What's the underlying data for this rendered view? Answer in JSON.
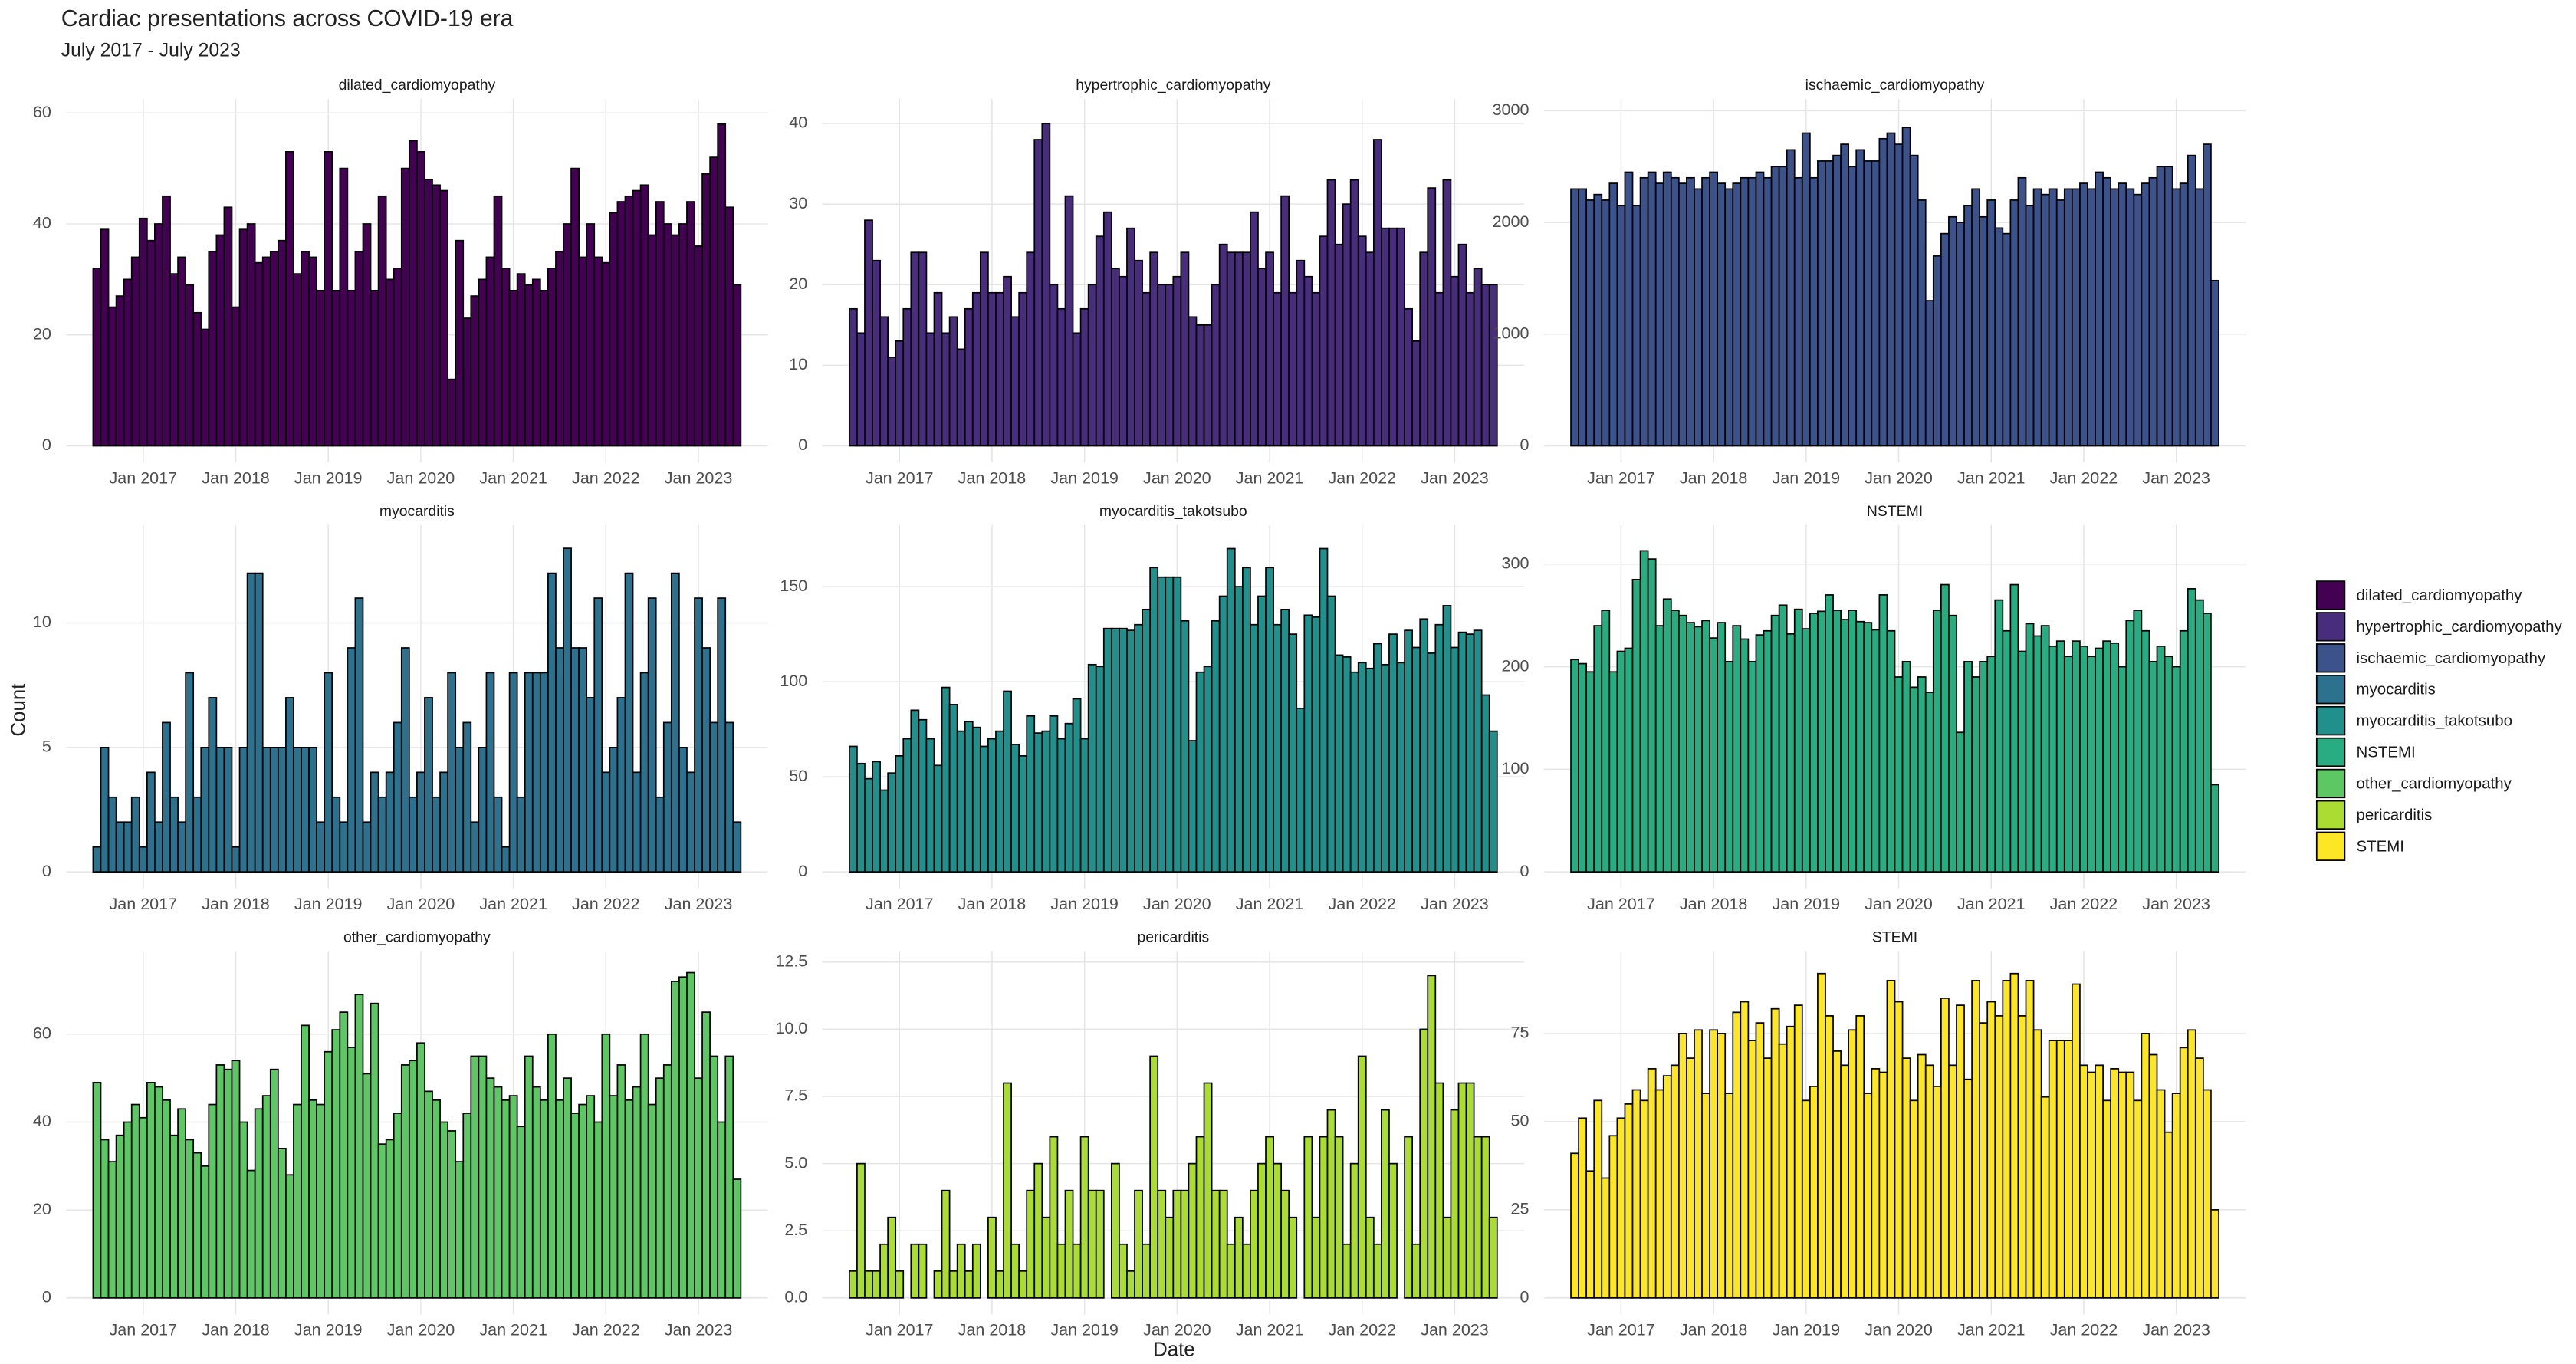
{
  "chart_data": {
    "type": "bar",
    "title": "Cardiac presentations across COVID-19 era",
    "subtitle": "July 2017 - July 2023",
    "x_label": "Date",
    "y_label": "Count",
    "xlim": [
      "2016-03",
      "2023-10"
    ],
    "xticks": [
      {
        "value": "2017-01",
        "label": "Jan 2017"
      },
      {
        "value": "2018-01",
        "label": "Jan 2018"
      },
      {
        "value": "2019-01",
        "label": "Jan 2019"
      },
      {
        "value": "2020-01",
        "label": "Jan 2020"
      },
      {
        "value": "2021-01",
        "label": "Jan 2021"
      },
      {
        "value": "2022-01",
        "label": "Jan 2022"
      },
      {
        "value": "2023-01",
        "label": "Jan 2023"
      }
    ],
    "grid": true,
    "legend": "right",
    "x": [
      "2016-07",
      "2016-08",
      "2016-09",
      "2016-10",
      "2016-11",
      "2016-12",
      "2017-01",
      "2017-02",
      "2017-03",
      "2017-04",
      "2017-05",
      "2017-06",
      "2017-07",
      "2017-08",
      "2017-09",
      "2017-10",
      "2017-11",
      "2017-12",
      "2018-01",
      "2018-02",
      "2018-03",
      "2018-04",
      "2018-05",
      "2018-06",
      "2018-07",
      "2018-08",
      "2018-09",
      "2018-10",
      "2018-11",
      "2018-12",
      "2019-01",
      "2019-02",
      "2019-03",
      "2019-04",
      "2019-05",
      "2019-06",
      "2019-07",
      "2019-08",
      "2019-09",
      "2019-10",
      "2019-11",
      "2019-12",
      "2020-01",
      "2020-02",
      "2020-03",
      "2020-04",
      "2020-05",
      "2020-06",
      "2020-07",
      "2020-08",
      "2020-09",
      "2020-10",
      "2020-11",
      "2020-12",
      "2021-01",
      "2021-02",
      "2021-03",
      "2021-04",
      "2021-05",
      "2021-06",
      "2021-07",
      "2021-08",
      "2021-09",
      "2021-10",
      "2021-11",
      "2021-12",
      "2022-01",
      "2022-02",
      "2022-03",
      "2022-04",
      "2022-05",
      "2022-06",
      "2022-07",
      "2022-08",
      "2022-09",
      "2022-10",
      "2022-11",
      "2022-12",
      "2023-01",
      "2023-02",
      "2023-03",
      "2023-04",
      "2023-05",
      "2023-06"
    ],
    "facets": [
      {
        "title": "dilated_cardiomyopathy",
        "color": "#440154",
        "ylim": [
          0,
          61
        ],
        "yticks": [
          0,
          20,
          40,
          60
        ],
        "values": [
          32,
          39,
          25,
          27,
          30,
          34,
          41,
          37,
          40,
          45,
          31,
          34,
          29,
          24,
          21,
          35,
          38,
          43,
          25,
          39,
          40,
          33,
          34,
          35,
          37,
          53,
          31,
          35,
          34,
          28,
          53,
          28,
          50,
          28,
          35,
          40,
          28,
          45,
          30,
          32,
          50,
          55,
          53,
          48,
          47,
          46,
          12,
          37,
          23,
          27,
          30,
          34,
          45,
          32,
          28,
          31,
          29,
          30,
          28,
          32,
          35,
          40,
          50,
          34,
          40,
          34,
          33,
          42,
          44,
          45,
          46,
          47,
          38,
          44,
          40,
          38,
          40,
          44,
          36,
          49,
          52,
          58,
          43,
          29
        ]
      },
      {
        "title": "hypertrophic_cardiomyopathy",
        "color": "#472D7B",
        "ylim": [
          0,
          42
        ],
        "yticks": [
          0,
          10,
          20,
          30,
          40
        ],
        "values": [
          17,
          14,
          28,
          23,
          16,
          11,
          13,
          17,
          24,
          24,
          14,
          19,
          14,
          16,
          12,
          17,
          19,
          24,
          19,
          19,
          21,
          16,
          19,
          24,
          38,
          40,
          20,
          17,
          31,
          14,
          17,
          20,
          26,
          29,
          22,
          21,
          27,
          23,
          19,
          24,
          20,
          20,
          21,
          24,
          16,
          15,
          15,
          20,
          25,
          24,
          24,
          24,
          29,
          22,
          24,
          19,
          31,
          19,
          23,
          21,
          19,
          26,
          33,
          25,
          30,
          33,
          26,
          24,
          38,
          27,
          27,
          27,
          17,
          13,
          24,
          32,
          19,
          33,
          21,
          25,
          19,
          22,
          20,
          20
        ]
      },
      {
        "title": "ischaemic_cardiomyopathy",
        "color": "#3B528B",
        "ylim": [
          0,
          3030
        ],
        "yticks": [
          0,
          1000,
          2000,
          3000
        ],
        "values": [
          2300,
          2300,
          2200,
          2250,
          2200,
          2350,
          2150,
          2450,
          2150,
          2400,
          2450,
          2350,
          2450,
          2400,
          2350,
          2400,
          2300,
          2400,
          2450,
          2350,
          2300,
          2350,
          2400,
          2400,
          2450,
          2400,
          2500,
          2500,
          2650,
          2400,
          2800,
          2400,
          2550,
          2550,
          2600,
          2700,
          2500,
          2650,
          2550,
          2550,
          2750,
          2800,
          2700,
          2850,
          2600,
          2200,
          1300,
          1700,
          1900,
          2050,
          2000,
          2150,
          2300,
          2050,
          2200,
          1950,
          1900,
          2200,
          2400,
          2150,
          2300,
          2250,
          2300,
          2200,
          2300,
          2300,
          2350,
          2300,
          2450,
          2400,
          2300,
          2350,
          2300,
          2250,
          2350,
          2400,
          2500,
          2500,
          2300,
          2350,
          2600,
          2300,
          2700,
          1480
        ]
      },
      {
        "title": "myocarditis",
        "color": "#2C728E",
        "ylim": [
          0,
          13.6
        ],
        "yticks": [
          0,
          5,
          10
        ],
        "values": [
          1,
          5,
          3,
          2,
          2,
          3,
          1,
          4,
          2,
          6,
          3,
          2,
          8,
          3,
          5,
          7,
          5,
          5,
          1,
          5,
          12,
          12,
          5,
          5,
          5,
          7,
          5,
          5,
          5,
          2,
          8,
          3,
          2,
          9,
          11,
          2,
          4,
          3,
          4,
          6,
          9,
          3,
          4,
          7,
          3,
          4,
          8,
          5,
          6,
          2,
          5,
          8,
          3,
          1,
          8,
          3,
          8,
          8,
          8,
          12,
          9,
          13,
          9,
          9,
          7,
          11,
          4,
          5,
          7,
          12,
          4,
          8,
          11,
          3,
          6,
          12,
          5,
          4,
          11,
          9,
          6,
          11,
          6,
          2
        ]
      },
      {
        "title": "myocarditis_takotsubo",
        "color": "#21908C",
        "ylim": [
          0,
          178
        ],
        "yticks": [
          0,
          50,
          100,
          150
        ],
        "values": [
          66,
          57,
          49,
          58,
          43,
          52,
          61,
          70,
          85,
          80,
          70,
          56,
          97,
          88,
          74,
          79,
          76,
          66,
          70,
          74,
          95,
          67,
          61,
          82,
          73,
          74,
          82,
          70,
          78,
          91,
          70,
          109,
          108,
          128,
          128,
          128,
          127,
          130,
          138,
          160,
          155,
          155,
          155,
          132,
          69,
          105,
          108,
          132,
          145,
          170,
          150,
          160,
          130,
          145,
          160,
          130,
          138,
          125,
          86,
          135,
          134,
          170,
          145,
          114,
          113,
          105,
          110,
          107,
          120,
          109,
          125,
          110,
          127,
          118,
          133,
          115,
          130,
          140,
          118,
          126,
          125,
          127,
          93,
          74
        ]
      },
      {
        "title": "NSTEMI",
        "color": "#27AD81",
        "ylim": [
          0,
          330
        ],
        "yticks": [
          0,
          100,
          200,
          300
        ],
        "values": [
          207,
          203,
          195,
          240,
          255,
          195,
          215,
          218,
          285,
          313,
          305,
          240,
          266,
          255,
          250,
          243,
          239,
          245,
          228,
          243,
          205,
          240,
          227,
          205,
          231,
          235,
          250,
          260,
          232,
          256,
          237,
          252,
          254,
          270,
          255,
          246,
          255,
          244,
          243,
          236,
          270,
          235,
          190,
          205,
          180,
          190,
          175,
          255,
          280,
          250,
          136,
          205,
          190,
          205,
          210,
          265,
          235,
          280,
          215,
          242,
          230,
          240,
          220,
          225,
          210,
          225,
          220,
          210,
          218,
          225,
          223,
          200,
          245,
          255,
          235,
          205,
          220,
          210,
          200,
          235,
          276,
          265,
          252,
          85
        ]
      },
      {
        "title": "other_cardiomyopathy",
        "color": "#5DC863",
        "ylim": [
          0,
          77
        ],
        "yticks": [
          0,
          20,
          40,
          60
        ],
        "values": [
          49,
          36,
          31,
          37,
          40,
          44,
          41,
          49,
          48,
          45,
          37,
          43,
          36,
          33,
          30,
          44,
          53,
          52,
          54,
          40,
          29,
          43,
          46,
          52,
          34,
          28,
          44,
          62,
          45,
          44,
          56,
          61,
          65,
          57,
          69,
          51,
          67,
          35,
          36,
          42,
          53,
          54,
          58,
          47,
          45,
          40,
          38,
          31,
          42,
          55,
          55,
          50,
          48,
          45,
          46,
          39,
          55,
          48,
          45,
          60,
          45,
          50,
          42,
          44,
          46,
          40,
          60,
          46,
          53,
          45,
          48,
          60,
          44,
          50,
          53,
          72,
          73,
          74,
          50,
          65,
          55,
          40,
          55,
          27
        ]
      },
      {
        "title": "pericarditis",
        "color": "#AADC32",
        "ylim": [
          0,
          12.6
        ],
        "yticks": [
          {
            "value": 0,
            "label": "0.0"
          },
          2.5,
          {
            "value": 5,
            "label": "5.0"
          },
          7.5,
          {
            "value": 10,
            "label": "10.0"
          },
          12.5
        ],
        "values": [
          1,
          5,
          1,
          1,
          2,
          3,
          1,
          null,
          2,
          2,
          null,
          1,
          4,
          1,
          2,
          1,
          2,
          null,
          3,
          1,
          8,
          2,
          1,
          4,
          5,
          3,
          6,
          2,
          4,
          2,
          6,
          4,
          4,
          null,
          5,
          2,
          1,
          4,
          2,
          9,
          4,
          3,
          4,
          4,
          5,
          6,
          8,
          4,
          4,
          2,
          3,
          2,
          4,
          5,
          6,
          5,
          4,
          3,
          null,
          6,
          3,
          6,
          7,
          6,
          2,
          5,
          9,
          3,
          2,
          7,
          5,
          null,
          6,
          2,
          10,
          12,
          8,
          3,
          7,
          8,
          8,
          6,
          6,
          3
        ]
      },
      {
        "title": "STEMI",
        "color": "#FDE725",
        "ylim": [
          0,
          96
        ],
        "yticks": [
          0,
          25,
          50,
          75
        ],
        "values": [
          41,
          51,
          36,
          56,
          34,
          46,
          51,
          55,
          59,
          56,
          65,
          59,
          63,
          66,
          75,
          68,
          76,
          58,
          76,
          75,
          58,
          81,
          84,
          73,
          78,
          68,
          82,
          72,
          77,
          83,
          56,
          60,
          92,
          80,
          70,
          66,
          76,
          80,
          58,
          65,
          64,
          90,
          84,
          68,
          56,
          69,
          66,
          60,
          85,
          66,
          83,
          62,
          90,
          78,
          84,
          80,
          90,
          92,
          80,
          90,
          76,
          57,
          73,
          73,
          73,
          89,
          66,
          64,
          66,
          56,
          65,
          64,
          64,
          56,
          75,
          69,
          59,
          47,
          58,
          71,
          76,
          68,
          59,
          25
        ]
      }
    ]
  }
}
